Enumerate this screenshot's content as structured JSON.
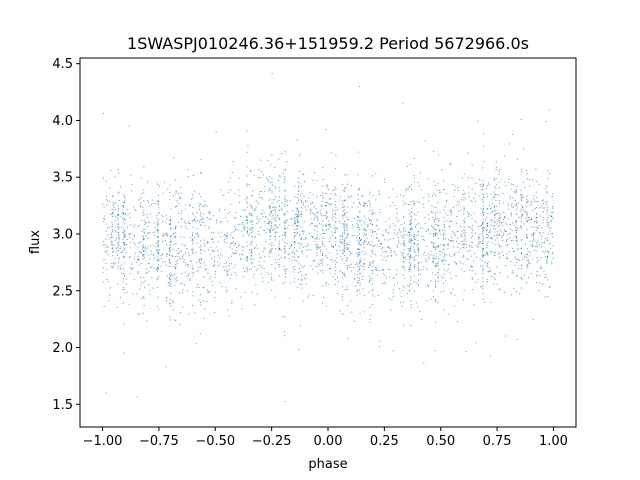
{
  "chart_data": {
    "type": "scatter",
    "title": "1SWASPJ010246.36+151959.2 Period 5672966.0s",
    "xlabel": "phase",
    "ylabel": "flux",
    "xlim": [
      -1.1,
      1.1
    ],
    "ylim": [
      1.3,
      4.55
    ],
    "x_ticks": [
      -1.0,
      -0.75,
      -0.5,
      -0.25,
      0.0,
      0.25,
      0.5,
      0.75,
      1.0
    ],
    "x_tick_labels": [
      "−1.00",
      "−0.75",
      "−0.50",
      "−0.25",
      "0.00",
      "0.25",
      "0.50",
      "0.75",
      "1.00"
    ],
    "y_ticks": [
      1.5,
      2.0,
      2.5,
      3.0,
      3.5,
      4.0,
      4.5
    ],
    "y_tick_labels": [
      "1.5",
      "2.0",
      "2.5",
      "3.0",
      "3.5",
      "4.0",
      "4.5"
    ],
    "grid": false,
    "marker_color": "#1f77b4",
    "series": [
      {
        "x_range": [
          -1.0,
          1.0
        ],
        "y_range": [
          1.45,
          4.45
        ],
        "profile": {
          "phase": [
            -1.0,
            -0.75,
            -0.5,
            -0.25,
            0.0,
            0.25,
            0.5,
            0.75,
            1.0
          ],
          "flux_center": [
            3.0,
            2.88,
            2.92,
            3.08,
            3.0,
            2.88,
            2.92,
            3.08,
            3.0
          ]
        }
      }
    ]
  }
}
